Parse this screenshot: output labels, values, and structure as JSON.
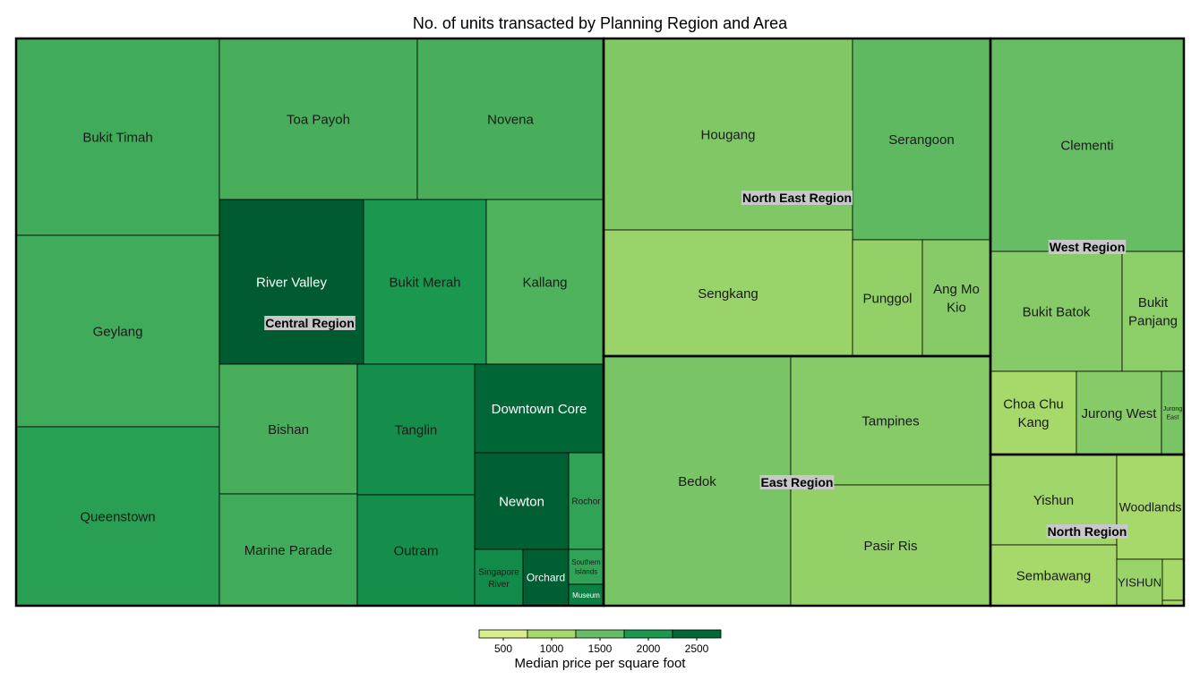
{
  "chart_data": {
    "type": "treemap",
    "title": "No. of units transacted by Planning Region and Area",
    "color_legend": {
      "title": "Median price per square foot",
      "ticks": [
        500,
        1000,
        1500,
        2000,
        2500
      ],
      "colors": [
        "#d9ef8b",
        "#a6d96a",
        "#66bd63",
        "#1a9850",
        "#006837"
      ]
    },
    "regions": [
      {
        "name": "Central Region",
        "areas": [
          {
            "name": "Bukit Timah",
            "median_psf": 1500
          },
          {
            "name": "Geylang",
            "median_psf": 1500
          },
          {
            "name": "Queenstown",
            "median_psf": 1650
          },
          {
            "name": "Toa Payoh",
            "median_psf": 1450
          },
          {
            "name": "Novena",
            "median_psf": 1450
          },
          {
            "name": "River Valley",
            "median_psf": 2600
          },
          {
            "name": "Bukit Merah",
            "median_psf": 1750
          },
          {
            "name": "Kallang",
            "median_psf": 1400
          },
          {
            "name": "Bishan",
            "median_psf": 1450
          },
          {
            "name": "Marine Parade",
            "median_psf": 1500
          },
          {
            "name": "Tanglin",
            "median_psf": 1850
          },
          {
            "name": "Outram",
            "median_psf": 1850
          },
          {
            "name": "Downtown Core",
            "median_psf": 2300
          },
          {
            "name": "Newton",
            "median_psf": 2450
          },
          {
            "name": "Rochor",
            "median_psf": 1600
          },
          {
            "name": "Singapore River",
            "median_psf": 1900
          },
          {
            "name": "Orchard",
            "median_psf": 2500
          },
          {
            "name": "Southern Islands",
            "median_psf": 1600
          },
          {
            "name": "Museum",
            "median_psf": 2000
          }
        ]
      },
      {
        "name": "North East Region",
        "areas": [
          {
            "name": "Hougang",
            "median_psf": 1050
          },
          {
            "name": "Serangoon",
            "median_psf": 1300
          },
          {
            "name": "Sengkang",
            "median_psf": 850
          },
          {
            "name": "Punggol",
            "median_psf": 900
          },
          {
            "name": "Ang Mo Kio",
            "median_psf": 1000
          }
        ]
      },
      {
        "name": "East Region",
        "areas": [
          {
            "name": "Bedok",
            "median_psf": 1100
          },
          {
            "name": "Tampines",
            "median_psf": 1000
          },
          {
            "name": "Pasir Ris",
            "median_psf": 900
          }
        ]
      },
      {
        "name": "West Region",
        "areas": [
          {
            "name": "Clementi",
            "median_psf": 1250
          },
          {
            "name": "Bukit Batok",
            "median_psf": 1000
          },
          {
            "name": "Bukit Panjang",
            "median_psf": 950
          },
          {
            "name": "Choa Chu Kang",
            "median_psf": 750
          },
          {
            "name": "Jurong West",
            "median_psf": 1000
          },
          {
            "name": "Jurong East",
            "median_psf": 1100
          }
        ]
      },
      {
        "name": "North Region",
        "areas": [
          {
            "name": "Yishun",
            "median_psf": 800
          },
          {
            "name": "Woodlands",
            "median_psf": 750
          },
          {
            "name": "Sembawang",
            "median_psf": 750
          },
          {
            "name": "YISHUN",
            "median_psf": 850
          },
          {
            "name": "",
            "median_psf": 750
          },
          {
            "name": "",
            "median_psf": 750
          }
        ]
      }
    ]
  }
}
